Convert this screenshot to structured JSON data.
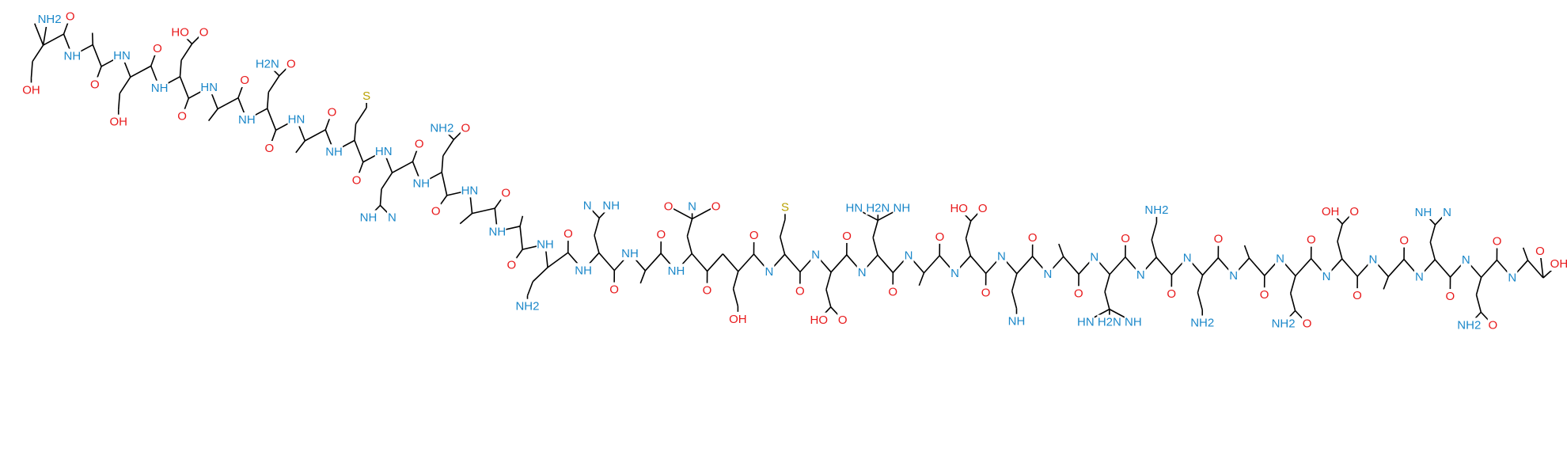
{
  "colors": {
    "nitrogen": "#1a87c9",
    "oxygen": "#e8191b",
    "sulfur": "#b8a100",
    "bond": "#000000"
  },
  "n_terminus": "NH2",
  "c_terminus": {
    "hydroxyl": "OH",
    "carbonyl": "O"
  },
  "residues": [
    {
      "n": "",
      "o": "O",
      "side": [
        "OH"
      ]
    },
    {
      "n": "NH",
      "o": "O",
      "side": []
    },
    {
      "n": "HN",
      "o": "O",
      "side": [
        "OH"
      ]
    },
    {
      "n": "NH",
      "o": "O",
      "side": [
        "HO",
        "O"
      ]
    },
    {
      "n": "HN",
      "o": "O",
      "side": []
    },
    {
      "n": "NH",
      "o": "O",
      "side": [
        "H2N",
        "O"
      ]
    },
    {
      "n": "HN",
      "o": "O",
      "side": []
    },
    {
      "n": "NH",
      "o": "O",
      "side": [
        "S"
      ]
    },
    {
      "n": "HN",
      "o": "O",
      "side": [
        "NH",
        "N"
      ]
    },
    {
      "n": "NH",
      "o": "O",
      "side": [
        "NH2",
        "O"
      ]
    },
    {
      "n": "HN",
      "o": "O",
      "side": []
    },
    {
      "n": "NH",
      "o": "O",
      "side": []
    },
    {
      "n": "NH",
      "o": "O",
      "side": [
        "NH2"
      ]
    },
    {
      "n": "NH",
      "o": "O",
      "side": [
        "N",
        "NH"
      ]
    },
    {
      "n": "NH",
      "o": "O",
      "side": []
    },
    {
      "n": "NH",
      "o": "O",
      "side": [
        "O",
        "N",
        "O"
      ]
    },
    {
      "n": "",
      "o": "O",
      "side": [
        "OH"
      ]
    },
    {
      "n": "N",
      "o": "O",
      "side": [
        "S"
      ]
    },
    {
      "n": "N",
      "o": "O",
      "side": [
        "HO",
        "O"
      ]
    },
    {
      "n": "N",
      "o": "O",
      "side": [
        "HN",
        "H2N",
        "NH"
      ]
    },
    {
      "n": "N",
      "o": "O",
      "side": []
    },
    {
      "n": "N",
      "o": "O",
      "side": [
        "HO",
        "O"
      ]
    },
    {
      "n": "N",
      "o": "O",
      "side": [
        "NH"
      ]
    },
    {
      "n": "N",
      "o": "O",
      "side": []
    },
    {
      "n": "N",
      "o": "O",
      "side": [
        "HN",
        "H2N",
        "NH"
      ]
    },
    {
      "n": "N",
      "o": "O",
      "side": [
        "NH2"
      ]
    },
    {
      "n": "N",
      "o": "O",
      "side": [
        "NH2"
      ]
    },
    {
      "n": "N",
      "o": "O",
      "side": []
    },
    {
      "n": "N",
      "o": "O",
      "side": [
        "NH2",
        "O"
      ]
    },
    {
      "n": "N",
      "o": "O",
      "side": [
        "OH",
        "O"
      ]
    },
    {
      "n": "N",
      "o": "O",
      "side": []
    },
    {
      "n": "N",
      "o": "O",
      "side": [
        "NH",
        "N"
      ]
    },
    {
      "n": "N",
      "o": "O",
      "side": [
        "NH2",
        "O"
      ]
    },
    {
      "n": "N",
      "o": "",
      "side": []
    }
  ]
}
